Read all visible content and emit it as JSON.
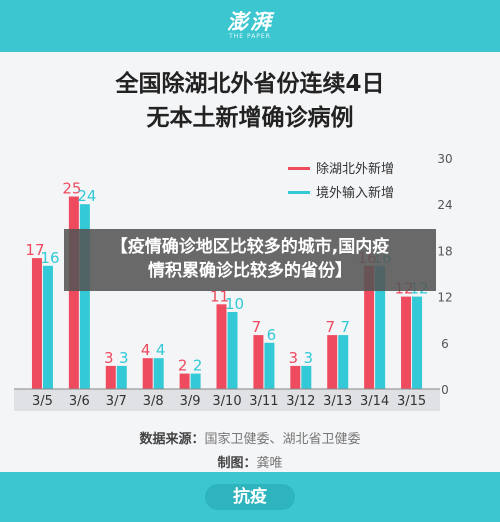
{
  "header": {
    "logo": "澎湃",
    "logo_sub": "THE PAPER"
  },
  "title_lines": [
    "全国除湖北外省份连续4日",
    "无本土新增确诊病例"
  ],
  "overlay": {
    "line1": "【疫情确诊地区比较多的城市,国内疫",
    "line2": "情积累确诊比较多的省份】"
  },
  "source": {
    "label": "数据来源：",
    "text": "国家卫健委、湖北省卫健委"
  },
  "maker": {
    "label": "制图：",
    "text": "龚唯"
  },
  "footer": {
    "label": "抗疫"
  },
  "colors": {
    "accent": "#3cc6cf",
    "series_red": "#ef4b5f",
    "series_cyan": "#33c9d6"
  },
  "chart_data": {
    "type": "bar",
    "categories": [
      "3/5",
      "3/6",
      "3/7",
      "3/8",
      "3/9",
      "3/10",
      "3/11",
      "3/12",
      "3/13",
      "3/14",
      "3/15"
    ],
    "series": [
      {
        "name": "除湖北外新增",
        "values": [
          17,
          25,
          3,
          4,
          2,
          11,
          7,
          3,
          7,
          16,
          12
        ]
      },
      {
        "name": "境外输入新增",
        "values": [
          16,
          24,
          3,
          4,
          2,
          10,
          6,
          3,
          7,
          16,
          12
        ]
      }
    ],
    "ylim": [
      0,
      30
    ],
    "yticks": [
      0,
      6,
      12,
      18,
      24,
      30
    ],
    "grid": false,
    "legend_position": "top-right",
    "y_axis_side": "right"
  }
}
